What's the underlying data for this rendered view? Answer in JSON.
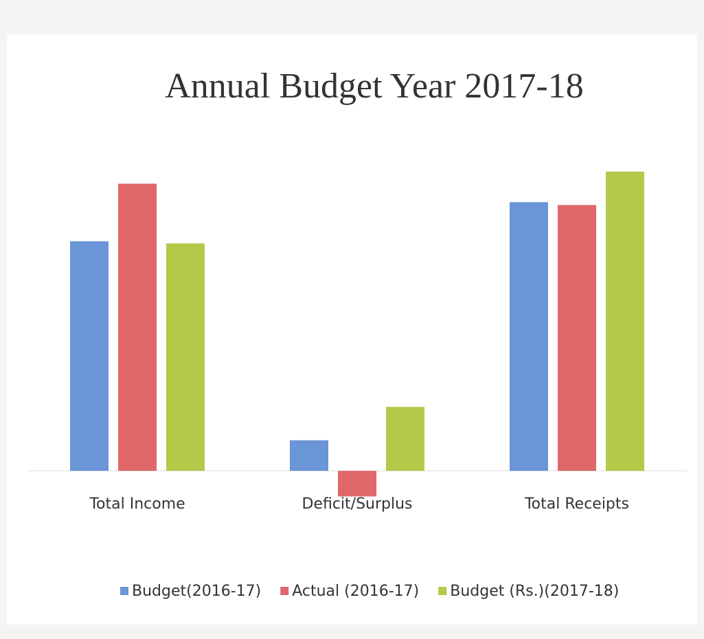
{
  "chart_data": {
    "type": "bar",
    "title": "Annual Budget Year 2017-18",
    "categories": [
      "Total Income",
      "Deficit/Surplus",
      "Total Receipts"
    ],
    "series": [
      {
        "name": "Budget(2016-17)",
        "color": "#6a95d6",
        "values": [
          323,
          43,
          378
        ]
      },
      {
        "name": "Actual (2016-17)",
        "color": "#e0686a",
        "values": [
          404,
          -36,
          374
        ]
      },
      {
        "name": "Budget (Rs.)(2017-18)",
        "color": "#b6c84a",
        "values": [
          320,
          90,
          421
        ]
      }
    ]
  }
}
